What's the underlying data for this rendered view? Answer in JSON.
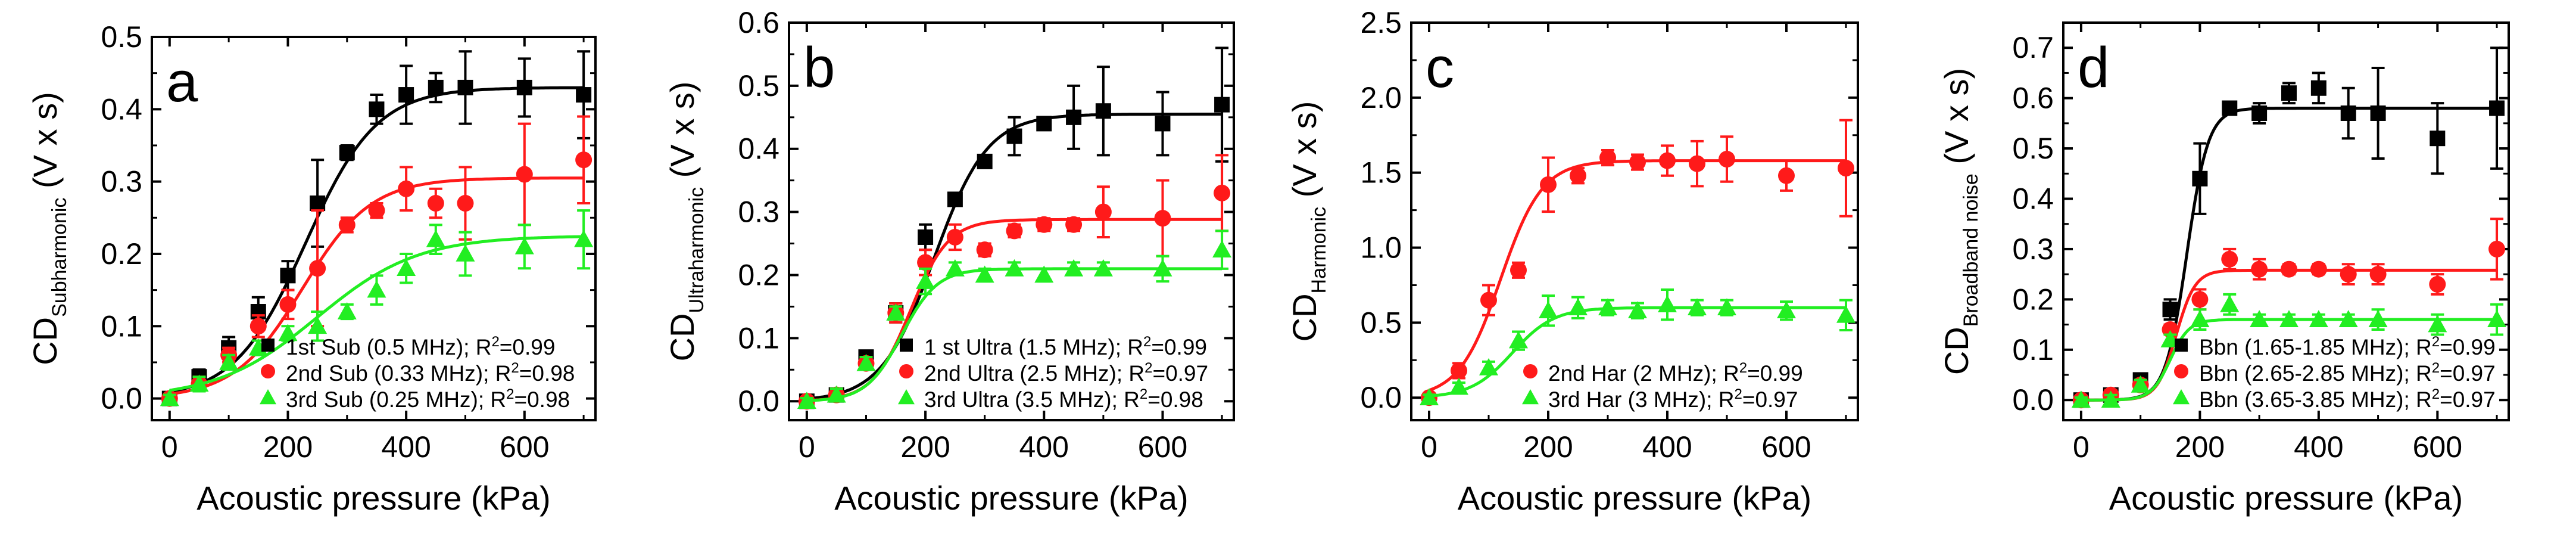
{
  "chart_data": [
    {
      "type": "scatter",
      "panel_label": "a",
      "xlabel": "Acoustic pressure (kPa)",
      "ylabel_main": "CD",
      "ylabel_sub": "Subharmonic",
      "ylabel_unit": "(V x s)",
      "xlim": [
        -30,
        720
      ],
      "ylim": [
        -0.03,
        0.5
      ],
      "xticks": [
        0,
        200,
        400,
        600
      ],
      "yticks": [
        0.0,
        0.1,
        0.2,
        0.3,
        0.4,
        0.5
      ],
      "yticks_text": [
        "0.0",
        "0.1",
        "0.2",
        "0.3",
        "0.4",
        "0.5"
      ],
      "x": [
        0,
        50,
        100,
        150,
        200,
        250,
        300,
        350,
        400,
        450,
        500,
        600,
        700
      ],
      "series": [
        {
          "name": "1st Sub (0.5 MHz)",
          "r2": "0.99",
          "color": "#000000",
          "marker": "square",
          "values": [
            0.0,
            0.03,
            0.07,
            0.12,
            0.17,
            0.27,
            0.34,
            0.4,
            0.42,
            0.43,
            0.43,
            0.43,
            0.42
          ],
          "errors": [
            0.005,
            0.01,
            0.015,
            0.02,
            0.02,
            0.06,
            0.01,
            0.02,
            0.04,
            0.02,
            0.05,
            0.04,
            0.06
          ],
          "fit": {
            "max": 0.43,
            "x0": 230,
            "w": 60
          }
        },
        {
          "name": "2nd Sub (0.33 MHz)",
          "r2": "0.98",
          "color": "#ff1a1a",
          "marker": "circle",
          "values": [
            0.0,
            0.02,
            0.06,
            0.1,
            0.13,
            0.18,
            0.24,
            0.26,
            0.29,
            0.27,
            0.27,
            0.31,
            0.33
          ],
          "errors": [
            0.005,
            0.01,
            0.01,
            0.015,
            0.02,
            0.08,
            0.01,
            0.01,
            0.03,
            0.02,
            0.05,
            0.07,
            0.06
          ],
          "fit": {
            "max": 0.305,
            "x0": 225,
            "w": 58
          }
        },
        {
          "name": "3rd Sub (0.25 MHz)",
          "r2": "0.98",
          "color": "#22ee22",
          "marker": "triangle",
          "values": [
            0.0,
            0.02,
            0.05,
            0.07,
            0.09,
            0.1,
            0.12,
            0.15,
            0.18,
            0.22,
            0.2,
            0.21,
            0.22
          ],
          "errors": [
            0.005,
            0.01,
            0.01,
            0.01,
            0.01,
            0.02,
            0.01,
            0.02,
            0.02,
            0.02,
            0.03,
            0.03,
            0.04
          ],
          "fit": {
            "max": 0.225,
            "x0": 250,
            "w": 85
          }
        }
      ],
      "legend_placement": "bottom-right"
    },
    {
      "type": "scatter",
      "panel_label": "b",
      "xlabel": "Acoustic pressure (kPa)",
      "ylabel_main": "CD",
      "ylabel_sub": "Ultraharmonic",
      "ylabel_unit": "(V x s)",
      "xlim": [
        -30,
        720
      ],
      "ylim": [
        -0.03,
        0.6
      ],
      "xticks": [
        0,
        200,
        400,
        600
      ],
      "yticks": [
        0.0,
        0.1,
        0.2,
        0.3,
        0.4,
        0.5,
        0.6
      ],
      "yticks_text": [
        "0.0",
        "0.1",
        "0.2",
        "0.3",
        "0.4",
        "0.5",
        "0.6"
      ],
      "x": [
        0,
        50,
        100,
        150,
        200,
        250,
        300,
        350,
        400,
        450,
        500,
        600,
        700
      ],
      "series": [
        {
          "name": "1 st Ultra (1.5 MHz)",
          "r2": "0.99",
          "color": "#000000",
          "marker": "square",
          "values": [
            0.0,
            0.01,
            0.07,
            0.14,
            0.26,
            0.32,
            0.38,
            0.42,
            0.44,
            0.45,
            0.46,
            0.44,
            0.47
          ],
          "errors": [
            0.005,
            0.01,
            0.01,
            0.015,
            0.02,
            0.01,
            0.01,
            0.03,
            0.01,
            0.05,
            0.07,
            0.05,
            0.09
          ],
          "fit": {
            "max": 0.455,
            "x0": 215,
            "w": 45
          }
        },
        {
          "name": "2nd Ultra (2.5 MHz)",
          "r2": "0.97",
          "color": "#ff1a1a",
          "marker": "circle",
          "values": [
            0.0,
            0.01,
            0.06,
            0.14,
            0.22,
            0.26,
            0.24,
            0.27,
            0.28,
            0.28,
            0.3,
            0.29,
            0.33
          ],
          "errors": [
            0.005,
            0.01,
            0.01,
            0.015,
            0.02,
            0.02,
            0.01,
            0.01,
            0.01,
            0.01,
            0.04,
            0.06,
            0.06
          ],
          "fit": {
            "max": 0.288,
            "x0": 175,
            "w": 32
          }
        },
        {
          "name": "3rd Ultra (3.5 MHz)",
          "r2": "0.98",
          "color": "#22ee22",
          "marker": "triangle",
          "values": [
            0.0,
            0.01,
            0.06,
            0.14,
            0.19,
            0.21,
            0.2,
            0.21,
            0.2,
            0.21,
            0.21,
            0.21,
            0.24
          ],
          "errors": [
            0.005,
            0.01,
            0.01,
            0.01,
            0.02,
            0.01,
            0.01,
            0.01,
            0.01,
            0.01,
            0.01,
            0.02,
            0.03
          ],
          "fit": {
            "max": 0.21,
            "x0": 160,
            "w": 30
          }
        }
      ],
      "legend_placement": "bottom-right"
    },
    {
      "type": "scatter",
      "panel_label": "c",
      "xlabel": "Acoustic pressure (kPa)",
      "ylabel_main": "CD",
      "ylabel_sub": "Harmonic",
      "ylabel_unit": "(V x s)",
      "xlim": [
        -30,
        720
      ],
      "ylim": [
        -0.15,
        2.5
      ],
      "xticks": [
        0,
        200,
        400,
        600
      ],
      "yticks": [
        0.0,
        0.5,
        1.0,
        1.5,
        2.0,
        2.5
      ],
      "yticks_text": [
        "0.0",
        "0.5",
        "1.0",
        "1.5",
        "2.0",
        "2.5"
      ],
      "x": [
        0,
        50,
        100,
        150,
        200,
        250,
        300,
        350,
        400,
        450,
        500,
        600,
        700
      ],
      "series": [
        {
          "name": "2nd Har (2 MHz)",
          "r2": "0.99",
          "color": "#ff1a1a",
          "marker": "circle",
          "values": [
            0.0,
            0.18,
            0.65,
            0.85,
            1.42,
            1.48,
            1.6,
            1.57,
            1.58,
            1.56,
            1.59,
            1.48,
            1.53
          ],
          "errors": [
            0.02,
            0.05,
            0.1,
            0.05,
            0.18,
            0.05,
            0.05,
            0.05,
            0.1,
            0.15,
            0.15,
            0.1,
            0.32
          ],
          "fit": {
            "max": 1.58,
            "x0": 120,
            "w": 35
          }
        },
        {
          "name": "3rd Har (3 MHz)",
          "r2": "0.97",
          "color": "#22ee22",
          "marker": "triangle",
          "values": [
            0.0,
            0.07,
            0.2,
            0.38,
            0.58,
            0.6,
            0.6,
            0.58,
            0.62,
            0.6,
            0.6,
            0.58,
            0.55
          ],
          "errors": [
            0.02,
            0.03,
            0.04,
            0.06,
            0.1,
            0.07,
            0.05,
            0.05,
            0.1,
            0.05,
            0.05,
            0.06,
            0.1
          ],
          "fit": {
            "max": 0.6,
            "x0": 140,
            "w": 35
          }
        }
      ],
      "legend_placement": "bottom-right"
    },
    {
      "type": "scatter",
      "panel_label": "d",
      "xlabel": "Acoustic pressure (kPa)",
      "ylabel_main": "CD",
      "ylabel_sub": "Broadband noise",
      "ylabel_unit": "(V x s)",
      "xlim": [
        -30,
        720
      ],
      "ylim": [
        -0.04,
        0.75
      ],
      "xticks": [
        0,
        200,
        400,
        600
      ],
      "yticks": [
        0.0,
        0.1,
        0.2,
        0.3,
        0.4,
        0.5,
        0.6,
        0.7
      ],
      "yticks_text": [
        "0.0",
        "0.1",
        "0.2",
        "0.3",
        "0.4",
        "0.5",
        "0.6",
        "0.7"
      ],
      "x": [
        0,
        50,
        100,
        150,
        200,
        250,
        300,
        350,
        400,
        450,
        500,
        600,
        700
      ],
      "series": [
        {
          "name": "Bbn (1.65-1.85 MHz)",
          "r2": "0.99",
          "color": "#000000",
          "marker": "square",
          "values": [
            0.0,
            0.01,
            0.04,
            0.18,
            0.44,
            0.58,
            0.57,
            0.61,
            0.62,
            0.57,
            0.57,
            0.52,
            0.58
          ],
          "errors": [
            0.005,
            0.01,
            0.01,
            0.02,
            0.07,
            0.01,
            0.02,
            0.02,
            0.03,
            0.05,
            0.09,
            0.07,
            0.12
          ],
          "fit": {
            "max": 0.58,
            "x0": 178,
            "w": 18
          }
        },
        {
          "name": "Bbn (2.65-2.85 MHz)",
          "r2": "0.97",
          "color": "#ff1a1a",
          "marker": "circle",
          "values": [
            0.0,
            0.01,
            0.03,
            0.14,
            0.2,
            0.28,
            0.26,
            0.26,
            0.26,
            0.25,
            0.25,
            0.23,
            0.3
          ],
          "errors": [
            0.005,
            0.01,
            0.01,
            0.01,
            0.02,
            0.02,
            0.02,
            0.01,
            0.01,
            0.02,
            0.02,
            0.02,
            0.06
          ],
          "fit": {
            "max": 0.258,
            "x0": 160,
            "w": 16
          }
        },
        {
          "name": "Bbn (3.65-3.85 MHz)",
          "r2": "0.97",
          "color": "#22ee22",
          "marker": "triangle",
          "values": [
            0.0,
            0.0,
            0.03,
            0.12,
            0.16,
            0.19,
            0.16,
            0.16,
            0.16,
            0.16,
            0.16,
            0.15,
            0.16
          ],
          "errors": [
            0.005,
            0.01,
            0.01,
            0.01,
            0.02,
            0.02,
            0.01,
            0.01,
            0.01,
            0.01,
            0.02,
            0.02,
            0.03
          ],
          "fit": {
            "max": 0.16,
            "x0": 150,
            "w": 16
          }
        }
      ],
      "legend_placement": "bottom-right"
    }
  ]
}
